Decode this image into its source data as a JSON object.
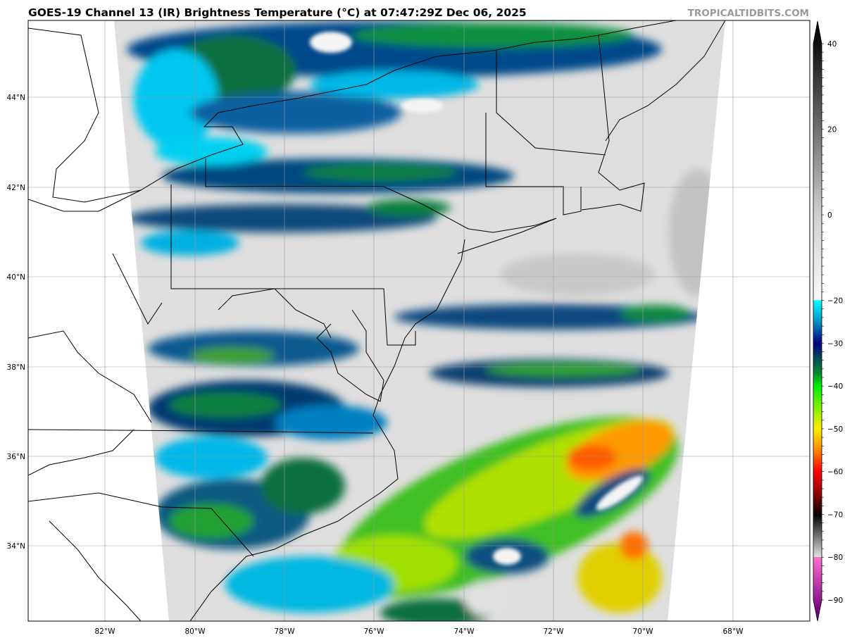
{
  "title": "GOES-19 Channel 13 (IR) Brightness Temperature (°C) at 07:47:29Z Dec 06, 2025",
  "watermark": "TROPICALTIDBITS.COM",
  "map": {
    "lon_labels": [
      "82°W",
      "80°W",
      "78°W",
      "76°W",
      "74°W",
      "72°W",
      "70°W",
      "68°W"
    ],
    "lat_labels": [
      "44°N",
      "42°N",
      "40°N",
      "38°N",
      "36°N",
      "34°N"
    ],
    "gridlines": true
  },
  "colorbar": {
    "tick_labels": [
      "40",
      "20",
      "0",
      "−20",
      "−30",
      "−40",
      "−50",
      "−60",
      "−70",
      "−80",
      "−90"
    ],
    "tick_values": [
      40,
      20,
      0,
      -20,
      -30,
      -40,
      -50,
      -60,
      -70,
      -80,
      -90
    ],
    "range": [
      45,
      -93
    ],
    "stops": [
      {
        "v": 45,
        "c": "#000000"
      },
      {
        "v": 40,
        "c": "#111111"
      },
      {
        "v": 20,
        "c": "#707070"
      },
      {
        "v": 0,
        "c": "#d0d0d0"
      },
      {
        "v": -19.9,
        "c": "#fafafa"
      },
      {
        "v": -20,
        "c": "#00ffff"
      },
      {
        "v": -25,
        "c": "#0090c8"
      },
      {
        "v": -30,
        "c": "#000080"
      },
      {
        "v": -33,
        "c": "#004060"
      },
      {
        "v": -37,
        "c": "#008a30"
      },
      {
        "v": -40,
        "c": "#00ee00"
      },
      {
        "v": -45,
        "c": "#80ee00"
      },
      {
        "v": -50,
        "c": "#ffee00"
      },
      {
        "v": -55,
        "c": "#ff8800"
      },
      {
        "v": -60,
        "c": "#ff0000"
      },
      {
        "v": -65,
        "c": "#900000"
      },
      {
        "v": -69.9,
        "c": "#100000"
      },
      {
        "v": -70,
        "c": "#000000"
      },
      {
        "v": -79.9,
        "c": "#e0e0e0"
      },
      {
        "v": -80,
        "c": "#ff70d0"
      },
      {
        "v": -93,
        "c": "#700080"
      }
    ]
  }
}
